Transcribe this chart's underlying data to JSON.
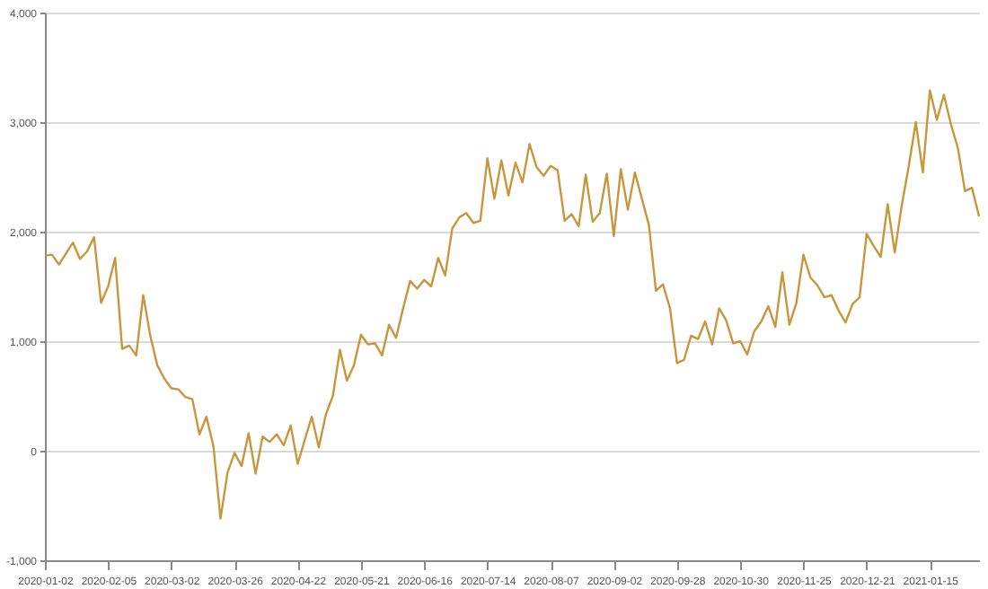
{
  "chart_data": {
    "type": "line",
    "categories": [
      "2020-01-02",
      null,
      null,
      null,
      null,
      null,
      null,
      null,
      null,
      "2020-02-05",
      null,
      null,
      null,
      null,
      null,
      null,
      null,
      null,
      "2020-03-02",
      null,
      null,
      null,
      null,
      null,
      null,
      null,
      null,
      "2020-03-26",
      null,
      null,
      null,
      null,
      null,
      null,
      null,
      null,
      "2020-04-22",
      null,
      null,
      null,
      null,
      null,
      null,
      null,
      null,
      "2020-05-21",
      null,
      null,
      null,
      null,
      null,
      null,
      null,
      null,
      "2020-06-16",
      null,
      null,
      null,
      null,
      null,
      null,
      null,
      null,
      "2020-07-14",
      null,
      null,
      null,
      null,
      null,
      null,
      null,
      null,
      "2020-08-07",
      null,
      null,
      null,
      null,
      null,
      null,
      null,
      null,
      "2020-09-02",
      null,
      null,
      null,
      null,
      null,
      null,
      null,
      null,
      "2020-09-28",
      null,
      null,
      null,
      null,
      null,
      null,
      null,
      null,
      "2020-10-30",
      null,
      null,
      null,
      null,
      null,
      null,
      null,
      null,
      "2020-11-25",
      null,
      null,
      null,
      null,
      null,
      null,
      null,
      null,
      "2020-12-21",
      null,
      null,
      null,
      null,
      null,
      null,
      null,
      null,
      "2021-01-15",
      null,
      null,
      null,
      null,
      null,
      null,
      null
    ],
    "series": [
      {
        "color": "#c8963c",
        "values": [
          1780,
          1790,
          1700,
          1800,
          1900,
          1750,
          1820,
          1950,
          1350,
          1500,
          1760,
          930,
          960,
          870,
          1420,
          1050,
          780,
          660,
          570,
          560,
          490,
          470,
          150,
          310,
          40,
          -620,
          -200,
          -20,
          -140,
          160,
          -210,
          130,
          80,
          150,
          50,
          230,
          -120,
          100,
          310,
          30,
          330,
          500,
          920,
          640,
          780,
          1060,
          970,
          980,
          870,
          1150,
          1030,
          1300,
          1550,
          1480,
          1560,
          1500,
          1760,
          1600,
          2030,
          2130,
          2170,
          2080,
          2100,
          2670,
          2300,
          2650,
          2330,
          2630,
          2450,
          2800,
          2590,
          2510,
          2600,
          2560,
          2100,
          2160,
          2050,
          2520,
          2090,
          2170,
          2530,
          1960,
          2570,
          2200,
          2540,
          2300,
          2060,
          1460,
          1520,
          1300,
          800,
          830,
          1050,
          1020,
          1180,
          970,
          1300,
          1190,
          980,
          1000,
          880,
          1090,
          1180,
          1320,
          1130,
          1630,
          1150,
          1350,
          1790,
          1580,
          1510,
          1400,
          1420,
          1280,
          1170,
          1340,
          1400,
          1980,
          1870,
          1770,
          2250,
          1810,
          2240,
          2600,
          3000,
          2540,
          3290,
          3020,
          3250,
          2980,
          2760,
          2370,
          2400,
          2140
        ]
      }
    ],
    "ylim": [
      -1000,
      4000
    ],
    "yticks": [
      {
        "value": -1000,
        "label": "-1,000"
      },
      {
        "value": 0,
        "label": "0"
      },
      {
        "value": 1000,
        "label": "1,000"
      },
      {
        "value": 2000,
        "label": "2,000"
      },
      {
        "value": 3000,
        "label": "3,000"
      },
      {
        "value": 4000,
        "label": "4,000"
      }
    ],
    "grid": "y",
    "line_style": "solid",
    "marker": "none"
  }
}
